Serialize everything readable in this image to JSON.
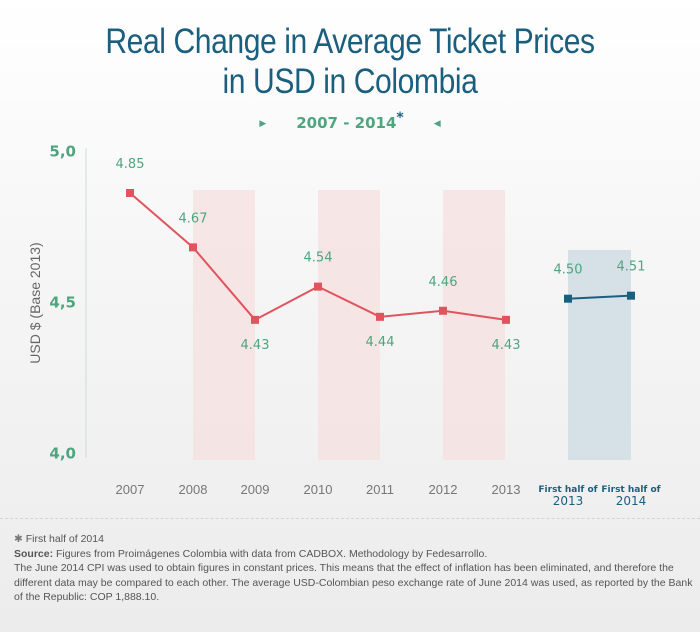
{
  "chart_data": {
    "type": "line",
    "title": "Real Change in Average Ticket Prices in USD in Colombia",
    "title_lines": [
      "Real Change in Average Ticket Prices",
      "in USD in Colombia"
    ],
    "subtitle": "2007 - 2014",
    "subtitle_marker": "*",
    "ylabel": "USD $ (Base 2013)",
    "ylim": [
      4.0,
      5.0
    ],
    "yticks": [
      "5,0",
      "4,5",
      "4,0"
    ],
    "ytick_values": [
      5.0,
      4.5,
      4.0
    ],
    "grid": false,
    "series": [
      {
        "categories": [
          "2007",
          "2008",
          "2009",
          "2010",
          "2011",
          "2012",
          "2013"
        ],
        "values": [
          4.85,
          4.67,
          4.43,
          4.54,
          4.44,
          4.46,
          4.43
        ],
        "labels": [
          "4.85",
          "4.67",
          "4.43",
          "4.54",
          "4.44",
          "4.46",
          "4.43"
        ],
        "color": "#e0545e"
      },
      {
        "categories": [
          [
            "First half of",
            "2013"
          ],
          [
            "First half of",
            "2014"
          ]
        ],
        "values": [
          4.5,
          4.51
        ],
        "labels": [
          "4.50",
          "4.51"
        ],
        "color": "#1b5f7f"
      }
    ],
    "label_color": "#4fa57f",
    "band_colors": [
      "#f5e1e1",
      "#d6e1e7"
    ]
  },
  "footnote": {
    "asterisk_note": "First half of 2014",
    "source_label": "Source:",
    "source_text": " Figures from Proimágenes Colombia with data from CADBOX. Methodology by Fedesarrollo.",
    "body": "The June 2014 CPI was used to obtain figures in constant prices. This means that the effect of inflation has been eliminated, and therefore the different data may be compared to each other. The average USD-Colombian peso exchange rate of June 2014 was used, as reported by the Bank of the Republic: COP 1,888.10."
  }
}
